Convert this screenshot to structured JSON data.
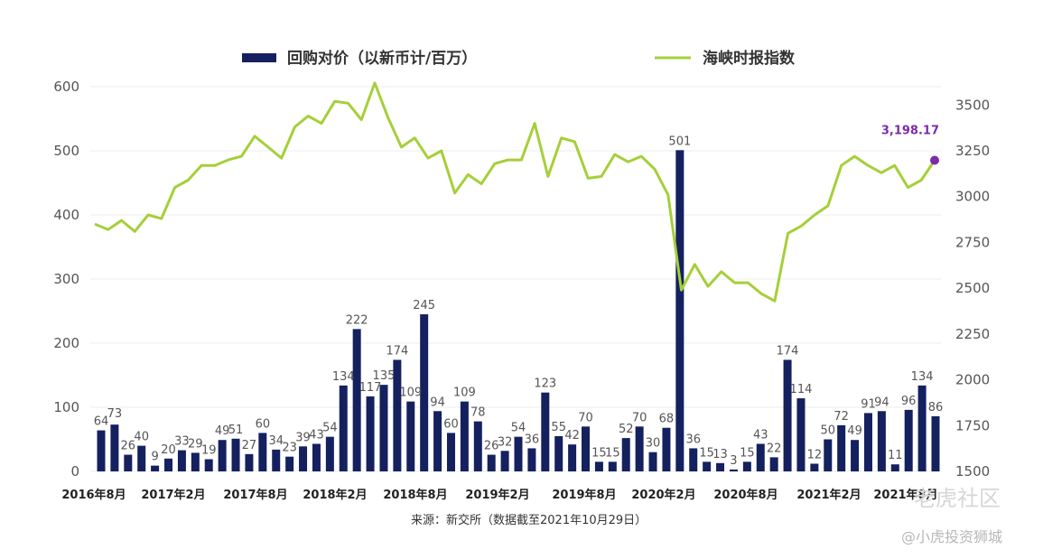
{
  "chart_data": {
    "type": "bar+line",
    "legend": [
      "回购对价（以新币计/百万）",
      "海峡时报指数"
    ],
    "bars": {
      "name": "回购对价（以新币计/百万）",
      "color": "#14215e",
      "values": [
        64,
        73,
        26,
        40,
        9,
        20,
        33,
        29,
        19,
        49,
        51,
        27,
        60,
        34,
        23,
        39,
        43,
        54,
        134,
        222,
        117,
        135,
        174,
        109,
        245,
        94,
        60,
        109,
        78,
        26,
        32,
        54,
        36,
        123,
        55,
        42,
        70,
        15,
        15,
        52,
        70,
        30,
        68,
        501,
        36,
        15,
        13,
        3,
        15,
        43,
        22,
        174,
        114,
        12,
        50,
        72,
        49,
        91,
        94,
        11,
        96,
        134,
        86
      ],
      "labels": [
        "64",
        "73",
        "26",
        "40",
        "9",
        "20",
        "33",
        "29",
        "19",
        "49",
        "51",
        "27",
        "60",
        "34",
        "23",
        "39",
        "43",
        "54",
        "134",
        "222",
        "117",
        "135",
        "174",
        "109",
        "245",
        "94",
        "60",
        "109",
        "78",
        "26",
        "32",
        "54",
        "36",
        "123",
        "55",
        "42",
        "70",
        "15",
        "15",
        "52",
        "70",
        "30",
        "68",
        "501",
        "36",
        "15",
        "13",
        "3",
        "15",
        "43",
        "22",
        "174",
        "114",
        "12",
        "50",
        "72",
        "49",
        "91",
        "94",
        "11",
        "96",
        "134",
        "86"
      ]
    },
    "line": {
      "name": "海峡时报指数",
      "color": "#a6cf39",
      "values": [
        2850,
        2820,
        2870,
        2810,
        2900,
        2880,
        3050,
        3090,
        3170,
        3170,
        3200,
        3220,
        3330,
        3270,
        3210,
        3380,
        3440,
        3400,
        3520,
        3510,
        3420,
        3620,
        3430,
        3270,
        3320,
        3210,
        3250,
        3020,
        3120,
        3070,
        3180,
        3200,
        3200,
        3400,
        3110,
        3320,
        3300,
        3100,
        3110,
        3230,
        3190,
        3220,
        3150,
        3010,
        2490,
        2630,
        2510,
        2590,
        2530,
        2530,
        2470,
        2430,
        2800,
        2840,
        2900,
        2950,
        3170,
        3220,
        3170,
        3130,
        3170,
        3050,
        3090,
        3198.17
      ]
    },
    "end_label": "3,198.17",
    "end_marker_color": "#7b2cab",
    "y_left": {
      "ticks": [
        "600",
        "500",
        "400",
        "300",
        "200",
        "100",
        "0"
      ],
      "ylim": [
        0,
        600
      ]
    },
    "y_right": {
      "ticks": [
        "3500",
        "3250",
        "3000",
        "2750",
        "2500",
        "2250",
        "2000",
        "1750",
        "1500"
      ],
      "ylim": [
        1500,
        3600
      ]
    },
    "x_ticks": [
      "2016年8月",
      "2017年2月",
      "2017年8月",
      "2018年2月",
      "2018年8月",
      "2019年2月",
      "2019年8月",
      "2020年2月",
      "2020年8月",
      "2021年2月",
      "2021年8月"
    ],
    "grid": "horizontal",
    "legend_position": "top-center"
  },
  "source": "来源：新交所（数据截至2021年10月29日）",
  "watermark": {
    "main": "老虎社区",
    "sub": "@小虎投资狮城"
  }
}
